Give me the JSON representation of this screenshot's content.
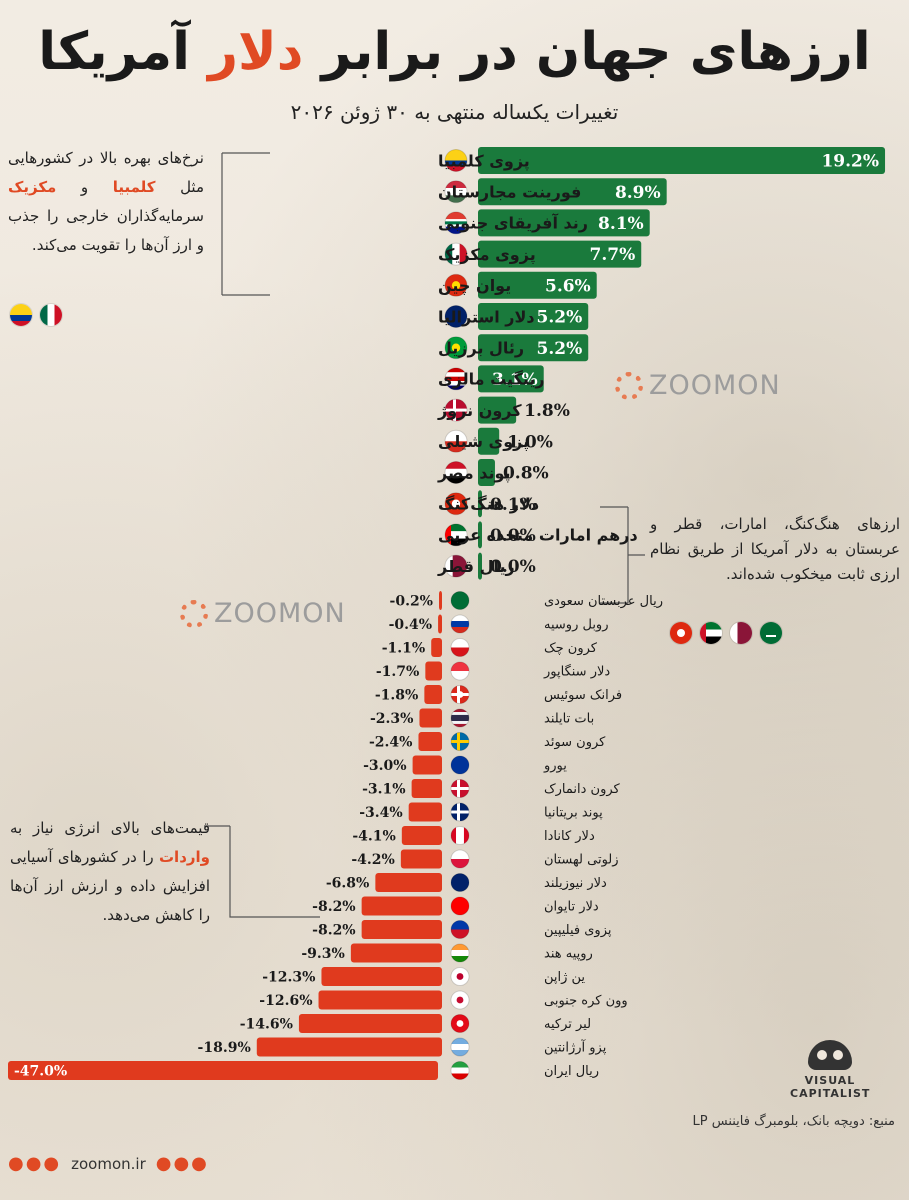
{
  "header": {
    "title_part1": "ارزهای جهان در برابر",
    "title_accent": "دلار",
    "title_part2": "آمریکا",
    "subtitle": "تغییرات یکساله منتهی به ۳۰ ژوئن ۲۰۲۶"
  },
  "notes": {
    "n1_a": "نرخ‌های بهره بالا در کشورهایی مثل",
    "n1_hl1": "کلمبیا",
    "n1_mid": "و",
    "n1_hl2": "مکزیک",
    "n1_b": "سرمایه‌گذاران خارجی را جذب و ارز آن‌ها را تقویت می‌کند.",
    "n2": "ارزهای هنگ‌کنگ، امارات، قطر و عربستان به دلار آمریکا از طریق نظام ارزی ثابت میخکوب شده‌اند.",
    "n3_a": "قیمت‌های بالای انرژی نیاز به",
    "n3_hl": "واردات",
    "n3_b": "را در کشورهای آسیایی افزایش داده و ارزش ارز آن‌ها را کاهش می‌دهد."
  },
  "watermark": "ZOOMON",
  "brand": {
    "vc_line1": "VISUAL",
    "vc_line2": "CAPITALIST"
  },
  "footer": {
    "source": "منبع: دویچه بانک، بلومبرگ فایننس LP",
    "site": "zoomon.ir"
  },
  "colors": {
    "positive": "#1a7a3c",
    "negative": "#e03a1e",
    "accent": "#e04a24"
  },
  "chart_data": {
    "type": "bar",
    "orientation": "horizontal",
    "title": "ارزهای جهان در برابر دلار آمریکا",
    "subtitle": "تغییرات یکساله منتهی به ۳۰ ژوئن ۲۰۲۶",
    "unit": "%",
    "categories": [
      "پزوی کلمبیا",
      "فورینت مجارستان",
      "رند آفریقای جنوبی",
      "پزوی مکزیک",
      "یوان چین",
      "دلار استرالیا",
      "رئال برزیل",
      "رینگیت مالزی",
      "کرون نروژ",
      "پزوی شیلی",
      "پوند مصر",
      "دلار هنگ‌کنگ",
      "درهم امارات متحده عربی",
      "ریال قطر",
      "ریال عربستان سعودی",
      "روبل روسیه",
      "کرون چک",
      "دلار سنگاپور",
      "فرانک سوئیس",
      "بات تایلند",
      "کرون سوئد",
      "یورو",
      "کرون دانمارک",
      "پوند بریتانیا",
      "دلار کانادا",
      "زلوتی لهستان",
      "دلار نیوزیلند",
      "دلار تایوان",
      "پزوی فیلیپین",
      "روپیه هند",
      "ین ژاپن",
      "وون کره جنوبی",
      "لیر ترکیه",
      "پزو آرژانتین",
      "ریال ایران"
    ],
    "values": [
      19.2,
      8.9,
      8.1,
      7.7,
      5.6,
      5.2,
      5.2,
      3.1,
      1.8,
      1.0,
      0.8,
      0.1,
      0.0,
      0.0,
      -0.2,
      -0.4,
      -1.1,
      -1.7,
      -1.8,
      -2.3,
      -2.4,
      -3.0,
      -3.1,
      -3.4,
      -4.1,
      -4.2,
      -6.8,
      -8.2,
      -8.2,
      -9.3,
      -12.3,
      -12.6,
      -14.6,
      -18.9,
      -47.0
    ],
    "labels": [
      "19.2%",
      "8.9%",
      "8.1%",
      "7.7%",
      "5.6%",
      "5.2%",
      "5.2%",
      "3.1%",
      "1.8%",
      "1.0%",
      "0.8%",
      "0.1%",
      "0.0%",
      "0.0%",
      "-0.2%",
      "-0.4%",
      "-1.1%",
      "-1.7%",
      "-1.8%",
      "-2.3%",
      "-2.4%",
      "-3.0%",
      "-3.1%",
      "-3.4%",
      "-4.1%",
      "-4.2%",
      "-6.8%",
      "-8.2%",
      "-8.2%",
      "-9.3%",
      "-12.3%",
      "-12.6%",
      "-14.6%",
      "-18.9%",
      "-47.0%"
    ],
    "flags": [
      "co",
      "hu",
      "za",
      "mx",
      "cn",
      "au",
      "br",
      "my",
      "no",
      "cl",
      "eg",
      "hk",
      "ae",
      "qa",
      "sa",
      "ru",
      "cz",
      "sg",
      "ch",
      "th",
      "se",
      "eu",
      "dk",
      "gb",
      "ca",
      "pl",
      "nz",
      "tw",
      "ph",
      "in",
      "jp",
      "kr",
      "tr",
      "ar",
      "ir"
    ],
    "xlabel": "",
    "ylabel": ""
  }
}
